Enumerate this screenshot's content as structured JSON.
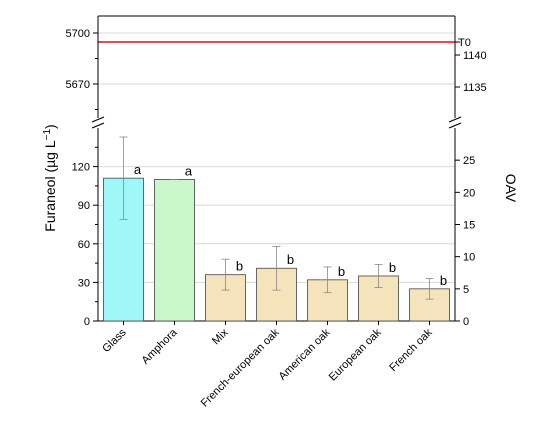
{
  "chart_data": {
    "type": "bar",
    "ylabel": "Furaneol (µg L",
    "ylabel_sup": "−1",
    "ylabel_close": ")",
    "y2label": "OAV",
    "categories": [
      "Glass",
      "Amphora",
      "Mix",
      "French-european oak",
      "American oak",
      "European oak",
      "French oak"
    ],
    "values": [
      111,
      110,
      36,
      41,
      32,
      35,
      25
    ],
    "errors": [
      32,
      0.5,
      12,
      17,
      10,
      9,
      8
    ],
    "letters": [
      "a",
      "a",
      "b",
      "b",
      "b",
      "b",
      "b"
    ],
    "colors": [
      "#9ff7f7",
      "#c9f7c9",
      "#f5e4bb",
      "#f5e4bb",
      "#f5e4bb",
      "#f5e4bb",
      "#f5e4bb"
    ],
    "lower_axis": {
      "ylim": [
        0,
        150
      ],
      "ticks": [
        0,
        30,
        60,
        90,
        120
      ]
    },
    "upper_axis": {
      "ylim": [
        5650,
        5710
      ],
      "ticks": [
        5670,
        5700
      ]
    },
    "right_lower_axis": {
      "ylim": [
        0,
        30
      ],
      "ticks": [
        0,
        5,
        10,
        15,
        20,
        25
      ]
    },
    "right_upper_axis": {
      "ticks": [
        1135,
        1140
      ]
    },
    "reference_line": {
      "label": "T0",
      "color": "#e0101a"
    }
  }
}
